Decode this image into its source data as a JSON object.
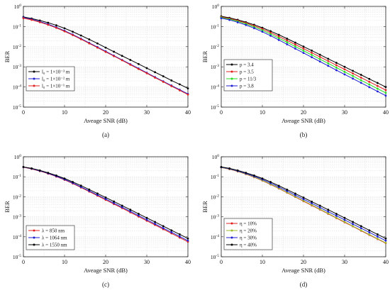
{
  "chart_data": [
    {
      "type": "line",
      "caption": "(a)",
      "xlabel": "Aveage SNR (dB)",
      "ylabel": "BER",
      "xlim": [
        0,
        40
      ],
      "ylim": [
        1e-05,
        1
      ],
      "yscale": "log",
      "grid": true,
      "legend_position": "bottom-left",
      "x": [
        0,
        2,
        4,
        6,
        8,
        10,
        12,
        14,
        16,
        18,
        20,
        22,
        24,
        26,
        28,
        30,
        32,
        34,
        36,
        38,
        40
      ],
      "x_ticks": [
        "0",
        "10",
        "20",
        "30",
        "40"
      ],
      "y_ticks": [
        {
          "base": "10",
          "exp": "0"
        },
        {
          "base": "10",
          "exp": "-1"
        },
        {
          "base": "10",
          "exp": "-2"
        },
        {
          "base": "10",
          "exp": "-3"
        },
        {
          "base": "10",
          "exp": "-4"
        },
        {
          "base": "10",
          "exp": "-5"
        }
      ],
      "series": [
        {
          "name": "l₀ = 1×10⁻³ m",
          "color": "#000000",
          "values": [
            0.3,
            0.25,
            0.2,
            0.155,
            0.115,
            0.082,
            0.055,
            0.036,
            0.023,
            0.0145,
            0.009,
            0.0056,
            0.0035,
            0.0022,
            0.00138,
            0.00086,
            0.00054,
            0.00034,
            0.00021,
            0.000135,
            8.5e-05
          ]
        },
        {
          "name": "l₀ = 1×10⁻² m",
          "color": "#1f1fd6",
          "values": [
            0.28,
            0.23,
            0.175,
            0.13,
            0.092,
            0.062,
            0.04,
            0.025,
            0.0155,
            0.0096,
            0.0059,
            0.0036,
            0.0022,
            0.00135,
            0.00083,
            0.00051,
            0.00031,
            0.00019,
            0.000118,
            7.3e-05,
            4.5e-05
          ]
        },
        {
          "name": "l₀ = 1×10⁻¹ m",
          "color": "#e0201f",
          "values": [
            0.26,
            0.215,
            0.165,
            0.122,
            0.086,
            0.058,
            0.0375,
            0.0235,
            0.0145,
            0.009,
            0.0055,
            0.0034,
            0.0021,
            0.00127,
            0.00078,
            0.00048,
            0.00029,
            0.00018,
            0.00011,
            6.8e-05,
            4.2e-05
          ]
        }
      ]
    },
    {
      "type": "line",
      "caption": "(b)",
      "xlabel": "Aveage SNR (dB)",
      "ylabel": "BER",
      "xlim": [
        0,
        40
      ],
      "ylim": [
        1e-05,
        1
      ],
      "yscale": "log",
      "grid": true,
      "legend_position": "bottom-left",
      "x": [
        0,
        2,
        4,
        6,
        8,
        10,
        12,
        14,
        16,
        18,
        20,
        22,
        24,
        26,
        28,
        30,
        32,
        34,
        36,
        38,
        40
      ],
      "x_ticks": [
        "0",
        "10",
        "20",
        "30",
        "40"
      ],
      "y_ticks": [
        {
          "base": "10",
          "exp": "0"
        },
        {
          "base": "10",
          "exp": "-1"
        },
        {
          "base": "10",
          "exp": "-2"
        },
        {
          "base": "10",
          "exp": "-3"
        },
        {
          "base": "10",
          "exp": "-4"
        },
        {
          "base": "10",
          "exp": "-5"
        }
      ],
      "series": [
        {
          "name": "p = 3.4",
          "color": "#000000",
          "values": [
            0.32,
            0.27,
            0.215,
            0.165,
            0.122,
            0.087,
            0.059,
            0.039,
            0.025,
            0.016,
            0.0101,
            0.0064,
            0.004,
            0.0025,
            0.00158,
            0.001,
            0.00063,
            0.0004,
            0.00025,
            0.000158,
            0.0001
          ]
        },
        {
          "name": "p = 3.5",
          "color": "#e0201f",
          "values": [
            0.3,
            0.25,
            0.198,
            0.15,
            0.109,
            0.076,
            0.05,
            0.032,
            0.0204,
            0.0128,
            0.008,
            0.005,
            0.0031,
            0.00194,
            0.0012,
            0.00075,
            0.00047,
            0.00029,
            0.00018,
            0.000113,
            7e-05
          ]
        },
        {
          "name": "p = 11/3",
          "color": "#22dd22",
          "values": [
            0.28,
            0.232,
            0.18,
            0.135,
            0.096,
            0.065,
            0.042,
            0.0265,
            0.0165,
            0.0102,
            0.0063,
            0.0039,
            0.0024,
            0.00148,
            0.00091,
            0.00056,
            0.00035,
            0.000215,
            0.000133,
            8.2e-05,
            5.1e-05
          ]
        },
        {
          "name": "p = 3.8",
          "color": "#1f1fd6",
          "values": [
            0.26,
            0.213,
            0.162,
            0.119,
            0.083,
            0.055,
            0.035,
            0.0215,
            0.0131,
            0.008,
            0.0049,
            0.003,
            0.00183,
            0.00112,
            0.00068,
            0.00042,
            0.00026,
            0.00016,
            9.8e-05,
            6e-05,
            3.7e-05
          ]
        }
      ]
    },
    {
      "type": "line",
      "caption": "(c)",
      "xlabel": "Aveage SNR (dB)",
      "ylabel": "BER",
      "xlim": [
        0,
        40
      ],
      "ylim": [
        1e-05,
        1
      ],
      "yscale": "log",
      "grid": true,
      "legend_position": "bottom-left",
      "x": [
        0,
        2,
        4,
        6,
        8,
        10,
        12,
        14,
        16,
        18,
        20,
        22,
        24,
        26,
        28,
        30,
        32,
        34,
        36,
        38,
        40
      ],
      "x_ticks": [
        "0",
        "10",
        "20",
        "30",
        "40"
      ],
      "y_ticks": [
        {
          "base": "10",
          "exp": "0"
        },
        {
          "base": "10",
          "exp": "-1"
        },
        {
          "base": "10",
          "exp": "-2"
        },
        {
          "base": "10",
          "exp": "-3"
        },
        {
          "base": "10",
          "exp": "-4"
        },
        {
          "base": "10",
          "exp": "-5"
        }
      ],
      "series": [
        {
          "name": "λ = 850 nm",
          "color": "#e0201f",
          "values": [
            0.3,
            0.248,
            0.192,
            0.143,
            0.102,
            0.07,
            0.046,
            0.029,
            0.0182,
            0.0113,
            0.007,
            0.0043,
            0.0027,
            0.00166,
            0.00102,
            0.00063,
            0.00039,
            0.00024,
            0.000148,
            9.1e-05,
            5.6e-05
          ]
        },
        {
          "name": "λ = 1064 nm",
          "color": "#1f1fd6",
          "values": [
            0.305,
            0.254,
            0.198,
            0.149,
            0.107,
            0.074,
            0.049,
            0.031,
            0.0197,
            0.0123,
            0.0077,
            0.0048,
            0.003,
            0.00186,
            0.00115,
            0.00071,
            0.00044,
            0.00027,
            0.000168,
            0.000104,
            6.4e-05
          ]
        },
        {
          "name": "λ = 1550 nm",
          "color": "#000000",
          "values": [
            0.31,
            0.262,
            0.207,
            0.158,
            0.116,
            0.082,
            0.055,
            0.036,
            0.023,
            0.0146,
            0.0092,
            0.0058,
            0.0036,
            0.00226,
            0.00141,
            0.00088,
            0.00055,
            0.00034,
            0.00021,
            0.000132,
            8.2e-05
          ]
        }
      ]
    },
    {
      "type": "line",
      "caption": "(d)",
      "xlabel": "Aveage SNR (dB)",
      "ylabel": "BER",
      "xlim": [
        0,
        40
      ],
      "ylim": [
        1e-05,
        1
      ],
      "yscale": "log",
      "grid": true,
      "legend_position": "bottom-left",
      "x": [
        0,
        2,
        4,
        6,
        8,
        10,
        12,
        14,
        16,
        18,
        20,
        22,
        24,
        26,
        28,
        30,
        32,
        34,
        36,
        38,
        40
      ],
      "x_ticks": [
        "0",
        "10",
        "20",
        "30",
        "40"
      ],
      "y_ticks": [
        {
          "base": "10",
          "exp": "0"
        },
        {
          "base": "10",
          "exp": "-1"
        },
        {
          "base": "10",
          "exp": "-2"
        },
        {
          "base": "10",
          "exp": "-3"
        },
        {
          "base": "10",
          "exp": "-4"
        },
        {
          "base": "10",
          "exp": "-5"
        }
      ],
      "series": [
        {
          "name": "η = 10%",
          "color": "#e0201f",
          "values": [
            0.29,
            0.24,
            0.183,
            0.135,
            0.095,
            0.064,
            0.041,
            0.026,
            0.016,
            0.0098,
            0.006,
            0.0037,
            0.0023,
            0.0014,
            0.00086,
            0.00053,
            0.00033,
            0.0002,
            0.000124,
            7.7e-05,
            4.8e-05
          ]
        },
        {
          "name": "η = 20%",
          "color": "#9bbb2a",
          "values": [
            0.295,
            0.245,
            0.188,
            0.139,
            0.098,
            0.066,
            0.0425,
            0.027,
            0.0166,
            0.0102,
            0.0063,
            0.0039,
            0.0024,
            0.00147,
            0.0009,
            0.00056,
            0.00034,
            0.00021,
            0.00013,
            8e-05,
            5e-05
          ]
        },
        {
          "name": "η = 30%",
          "color": "#1f1fd6",
          "values": [
            0.3,
            0.252,
            0.196,
            0.147,
            0.106,
            0.073,
            0.048,
            0.0306,
            0.0193,
            0.012,
            0.0075,
            0.0047,
            0.0029,
            0.0018,
            0.00112,
            0.0007,
            0.00043,
            0.00027,
            0.000166,
            0.000103,
            6.4e-05
          ]
        },
        {
          "name": "η = 40%",
          "color": "#000000",
          "values": [
            0.31,
            0.262,
            0.207,
            0.158,
            0.116,
            0.082,
            0.055,
            0.0355,
            0.0227,
            0.0144,
            0.0091,
            0.0057,
            0.0036,
            0.00225,
            0.0014,
            0.00088,
            0.00055,
            0.00034,
            0.00021,
            0.000132,
            8.2e-05
          ]
        }
      ]
    }
  ]
}
